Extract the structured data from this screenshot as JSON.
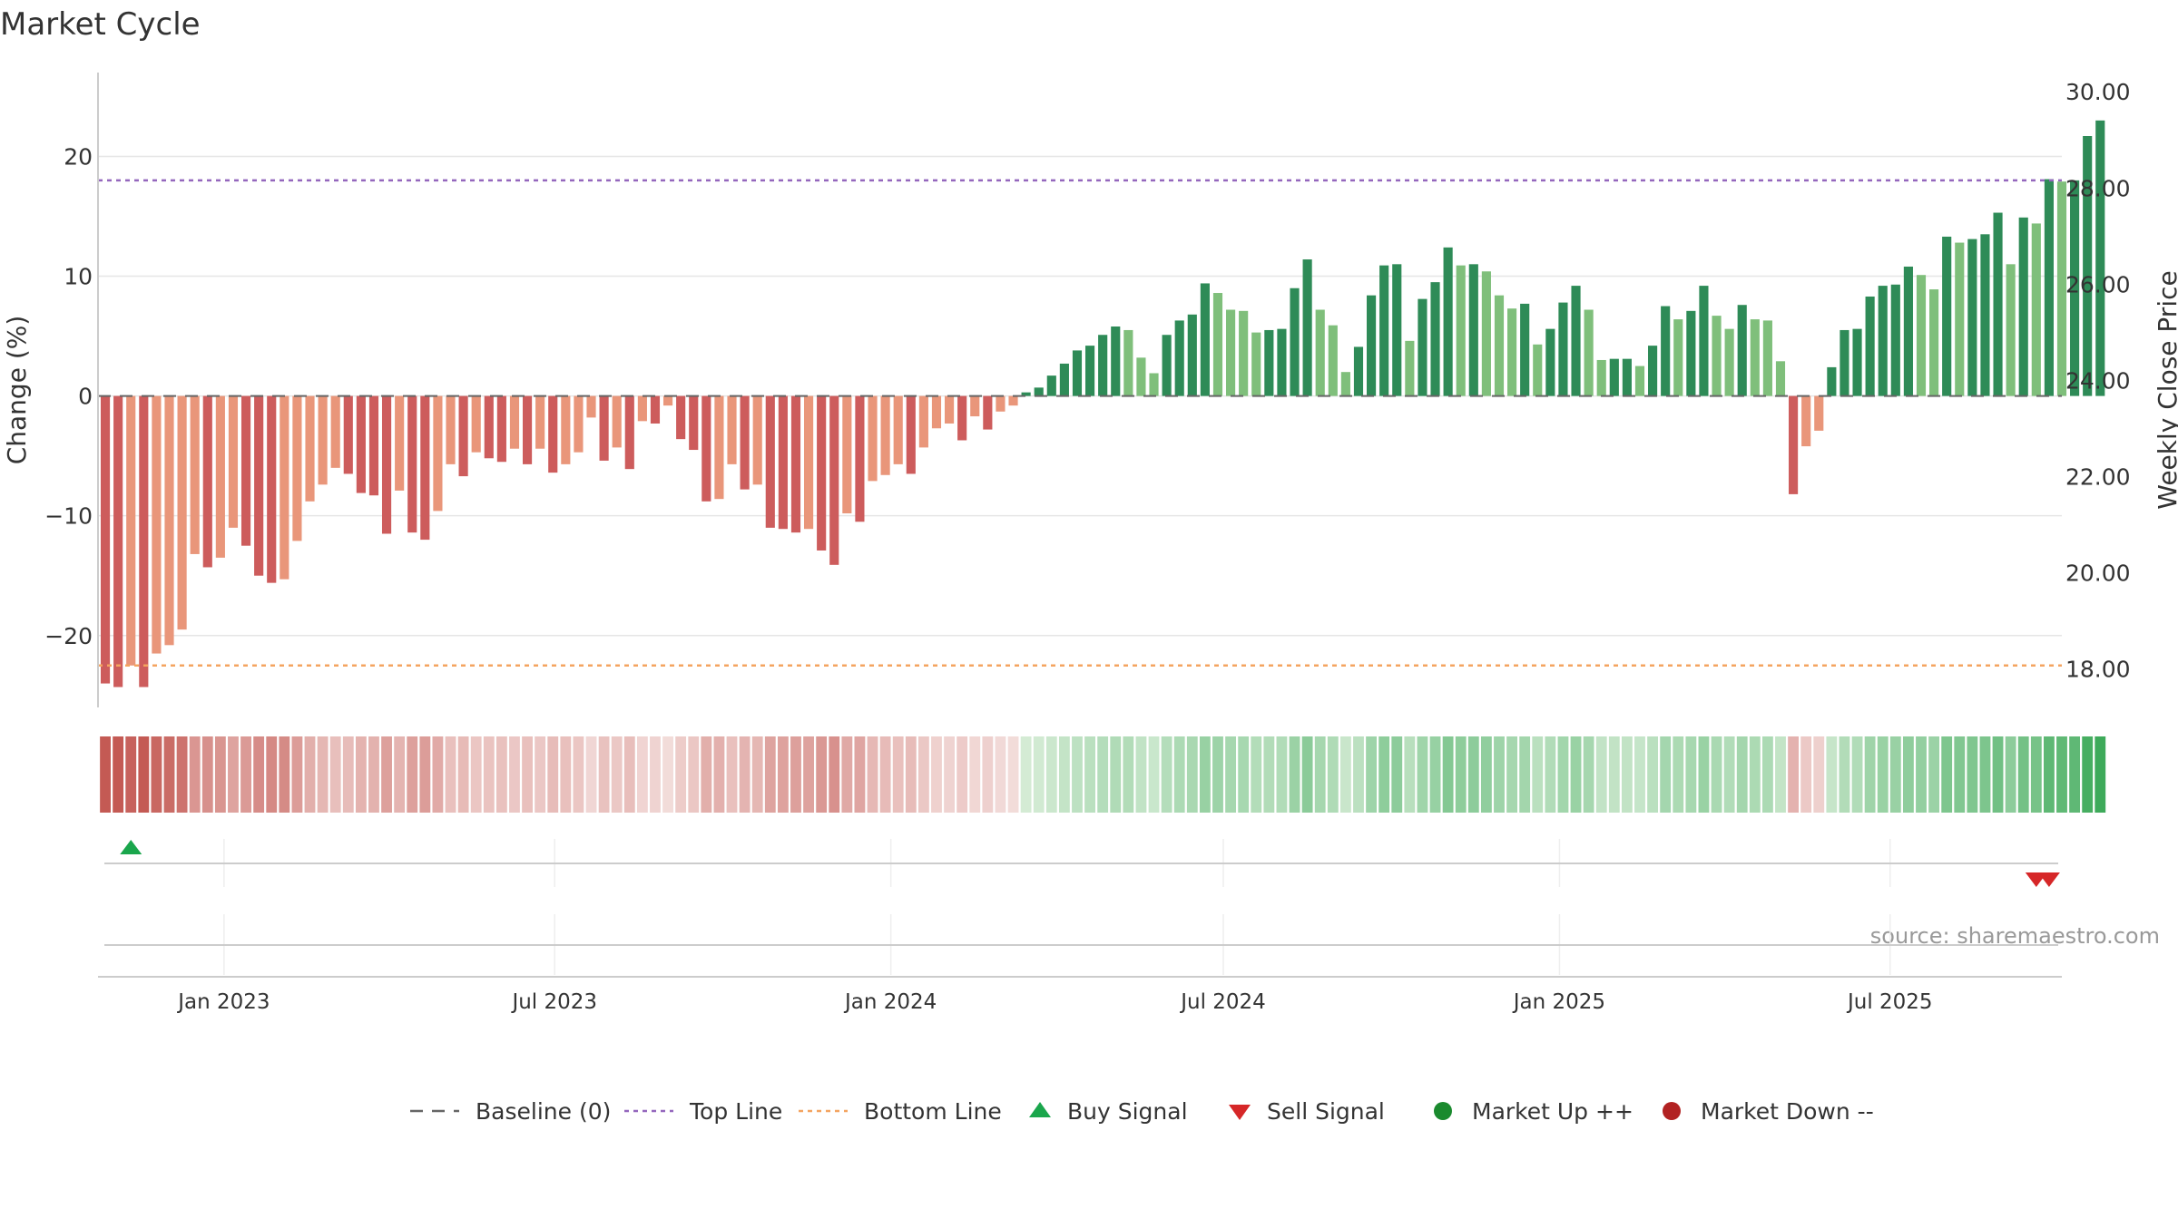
{
  "chart_data": {
    "type": "bar",
    "title": "Market Cycle",
    "ylabel": "Change (%)",
    "y2label": "Weekly Close Price",
    "ylim": [
      -26,
      27
    ],
    "y_ticks": [
      -20,
      -10,
      0,
      10,
      20
    ],
    "y_tick_labels": [
      "−20",
      "−10",
      "0",
      "10",
      "20"
    ],
    "y2lim": [
      17.2,
      30.4
    ],
    "y2_ticks": [
      18,
      20,
      22,
      24,
      26,
      28,
      30
    ],
    "y2_tick_labels": [
      "18.00",
      "20.00",
      "22.00",
      "24.00",
      "26.00",
      "28.00",
      "30.00"
    ],
    "x_range": [
      "2022-10-24",
      "2025-10-03"
    ],
    "x_ticks": [
      "2023-01-01",
      "2023-07-01",
      "2024-01-01",
      "2024-07-01",
      "2025-01-01",
      "2025-07-01"
    ],
    "x_tick_labels": [
      "Jan 2023",
      "Jul 2023",
      "Jan 2024",
      "Jul 2024",
      "Jan 2025",
      "Jul 2025"
    ],
    "first_bar_date": "2022-10-28",
    "bar_interval_days": 7,
    "top_line": 18,
    "bottom_line": -22.5,
    "grid": true,
    "legend_position": "bottom",
    "source": "source: sharemaestro.com",
    "legend": [
      {
        "label": "Baseline (0)",
        "symbol": "dash",
        "color": "#666666"
      },
      {
        "label": "Top Line",
        "symbol": "dot",
        "color": "#9467bd"
      },
      {
        "label": "Bottom Line",
        "symbol": "dot",
        "color": "#f4a460"
      },
      {
        "label": "Buy Signal",
        "symbol": "triangle-up",
        "color": "#1aa64c"
      },
      {
        "label": "Sell Signal",
        "symbol": "triangle-down",
        "color": "#d62728"
      },
      {
        "label": "Market Up ++",
        "symbol": "circle",
        "color": "#1a8a2e"
      },
      {
        "label": "Market Down --",
        "symbol": "circle",
        "color": "#b22222"
      }
    ],
    "values": [
      -24,
      -24.3,
      -22.5,
      -24.3,
      -21.5,
      -20.8,
      -19.5,
      -13.2,
      -14.3,
      -13.5,
      -11,
      -12.5,
      -15,
      -15.6,
      -15.3,
      -12.1,
      -8.8,
      -7.4,
      -6,
      -6.5,
      -8.1,
      -8.3,
      -11.5,
      -7.9,
      -11.4,
      -12,
      -9.6,
      -5.7,
      -6.7,
      -4.7,
      -5.2,
      -5.5,
      -4.4,
      -5.7,
      -4.4,
      -6.4,
      -5.7,
      -4.7,
      -1.8,
      -5.4,
      -4.3,
      -6.1,
      -2.1,
      -2.3,
      -0.8,
      -3.6,
      -4.5,
      -8.8,
      -8.6,
      -5.7,
      -7.8,
      -7.4,
      -11,
      -11.1,
      -11.4,
      -11.1,
      -12.9,
      -14.1,
      -9.8,
      -10.5,
      -7.1,
      -6.6,
      -5.7,
      -6.5,
      -4.3,
      -2.7,
      -2.3,
      -3.7,
      -1.7,
      -2.8,
      -1.3,
      -0.8,
      0.3,
      0.7,
      1.7,
      2.7,
      3.8,
      4.2,
      5.1,
      5.8,
      5.5,
      3.2,
      1.9,
      5.1,
      6.3,
      6.8,
      9.4,
      8.6,
      7.2,
      7.1,
      5.3,
      5.5,
      5.6,
      9,
      11.4,
      7.2,
      5.9,
      2,
      4.1,
      8.4,
      10.9,
      11,
      4.6,
      8.1,
      9.5,
      12.4,
      10.9,
      11,
      10.4,
      8.4,
      7.3,
      7.7,
      4.3,
      5.6,
      7.8,
      9.2,
      7.2,
      3,
      3.1,
      3.1,
      2.5,
      4.2,
      7.5,
      6.4,
      7.1,
      9.2,
      6.7,
      5.6,
      7.6,
      6.4,
      6.3,
      2.9,
      -8.2,
      -4.2,
      -2.9,
      2.4,
      5.5,
      5.6,
      8.3,
      9.2,
      9.3,
      10.8,
      10.1,
      8.9,
      13.3,
      12.8,
      13.1,
      13.5,
      15.3,
      11,
      14.9,
      14.4,
      18.1,
      17.9,
      18,
      21.7,
      23
    ],
    "buy_signals": [
      "2022-11-11"
    ],
    "sell_signals": [
      "2025-09-19",
      "2025-09-26"
    ]
  }
}
